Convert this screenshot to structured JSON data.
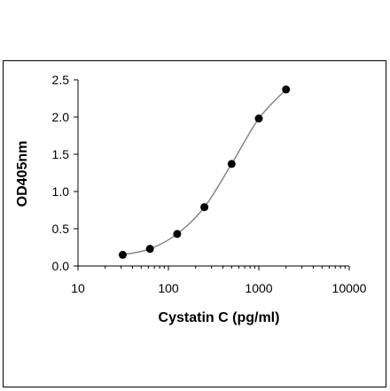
{
  "chart_data": {
    "type": "scatter",
    "title": "",
    "xlabel": "Cystatin C (pg/ml)",
    "ylabel": "OD405nm",
    "x_scale": "log",
    "xlim": [
      10,
      10000
    ],
    "ylim": [
      0,
      2.5
    ],
    "x_ticks": [
      10,
      100,
      1000,
      10000
    ],
    "x_tick_labels": [
      "10",
      "100",
      "1000",
      "10000"
    ],
    "y_ticks": [
      0,
      0.5,
      1.0,
      1.5,
      2.0,
      2.5
    ],
    "y_tick_labels": [
      "0.0",
      "0.5",
      "1.0",
      "1.5",
      "2.0",
      "2.5"
    ],
    "grid": false,
    "legend": "none",
    "series": [
      {
        "x": [
          31.25,
          62.5,
          125,
          250,
          500,
          1000,
          2000
        ],
        "y": [
          0.15,
          0.23,
          0.43,
          0.79,
          1.37,
          1.98,
          2.37
        ],
        "marker_color": "#000000",
        "line_color": "#808080"
      }
    ]
  }
}
